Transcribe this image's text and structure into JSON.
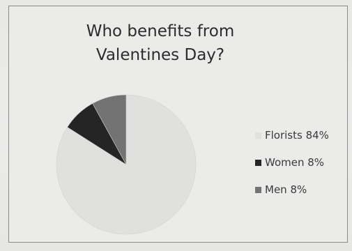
{
  "chart_data": {
    "type": "pie",
    "title": "Who benefits from\nValentines Day?",
    "slices": [
      {
        "label": "Florists",
        "value": 84,
        "legend_text": "Florists 84%",
        "color": "#e0e0de"
      },
      {
        "label": "Women",
        "value": 8,
        "legend_text": "Women 8%",
        "color": "#252525"
      },
      {
        "label": "Men",
        "value": 8,
        "legend_text": "Men 8%",
        "color": "#737373"
      }
    ],
    "legend_position": "right"
  }
}
